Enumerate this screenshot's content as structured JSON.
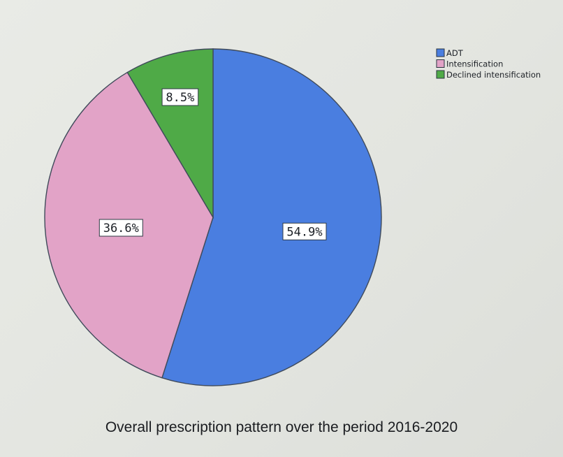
{
  "chart_data": {
    "type": "pie",
    "categories": [
      "ADT",
      "Intensification",
      "Declined intensification"
    ],
    "values": [
      54.9,
      36.6,
      8.5
    ],
    "data_labels": [
      "54.9%",
      "36.6%",
      "8.5%"
    ],
    "colors": [
      "#4a7ee0",
      "#e2a3c7",
      "#4faa47"
    ],
    "start_angle_deg": 0,
    "direction": "clockwise",
    "legend_position": "top-right"
  },
  "caption": "Overall prescription pattern over the period 2016-2020"
}
